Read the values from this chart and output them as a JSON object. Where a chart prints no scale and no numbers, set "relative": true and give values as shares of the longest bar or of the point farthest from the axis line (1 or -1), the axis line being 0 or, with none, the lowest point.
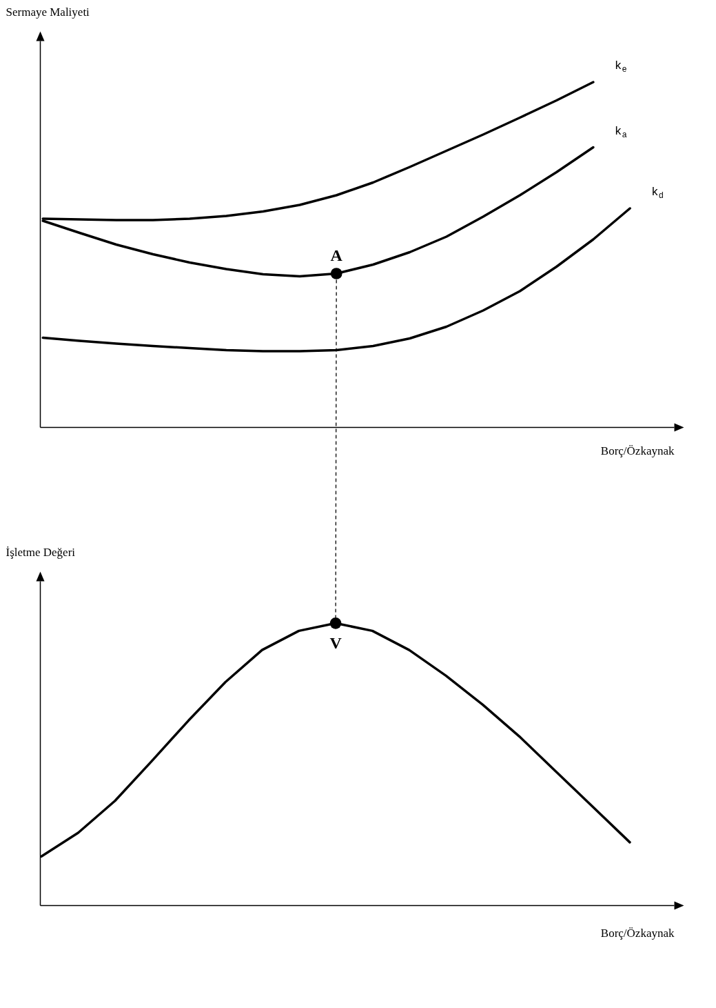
{
  "chart_data": [
    {
      "type": "line",
      "relative": true,
      "ylabel": "Sermaye Maliyeti",
      "xlabel": "Borç/Özkaynak",
      "annotations": [
        {
          "text": "A",
          "y": 0.445
        }
      ],
      "categories": [
        null,
        null,
        null,
        null,
        null,
        null,
        null,
        null,
        null,
        null,
        null,
        null,
        null,
        null,
        null,
        null,
        null
      ],
      "series": [
        {
          "name": "k$_{e}$",
          "color": "#000000",
          "values": [
            0.604,
            0.602,
            0.6,
            0.6,
            0.604,
            0.612,
            0.625,
            0.644,
            0.672,
            0.709,
            0.754,
            0.801,
            0.848,
            0.897,
            0.947,
            1,
            null
          ]
        },
        {
          "name": "k$_{a}$",
          "color": "#000000",
          "values": [
            0.598,
            0.563,
            0.529,
            0.501,
            0.477,
            0.458,
            0.443,
            0.437,
            0.445,
            0.471,
            0.507,
            0.552,
            0.61,
            0.672,
            0.739,
            0.811,
            null
          ]
        },
        {
          "name": "k$_{d}$",
          "color": "#000000",
          "values": [
            0.259,
            0.25,
            0.242,
            0.235,
            0.229,
            0.223,
            0.22,
            0.22,
            0.223,
            0.235,
            0.257,
            0.291,
            0.338,
            0.394,
            0.465,
            0.544,
            0.634
          ]
        }
      ]
    },
    {
      "type": "line",
      "relative": true,
      "ylabel": "İşletme Değeri",
      "xlabel": "Borç/Özkaynak",
      "annotations": [
        {
          "text": "V",
          "y": 1
        }
      ],
      "categories": [
        null,
        null,
        null,
        null,
        null,
        null,
        null,
        null,
        null,
        null,
        null,
        null,
        null,
        null,
        null,
        null,
        null
      ],
      "series": [
        {
          "color": "#000000",
          "values": [
            0.173,
            0.257,
            0.37,
            0.511,
            0.655,
            0.791,
            0.905,
            0.973,
            1,
            0.973,
            0.905,
            0.814,
            0.711,
            0.598,
            0.473,
            0.348,
            0.223
          ]
        }
      ]
    }
  ]
}
